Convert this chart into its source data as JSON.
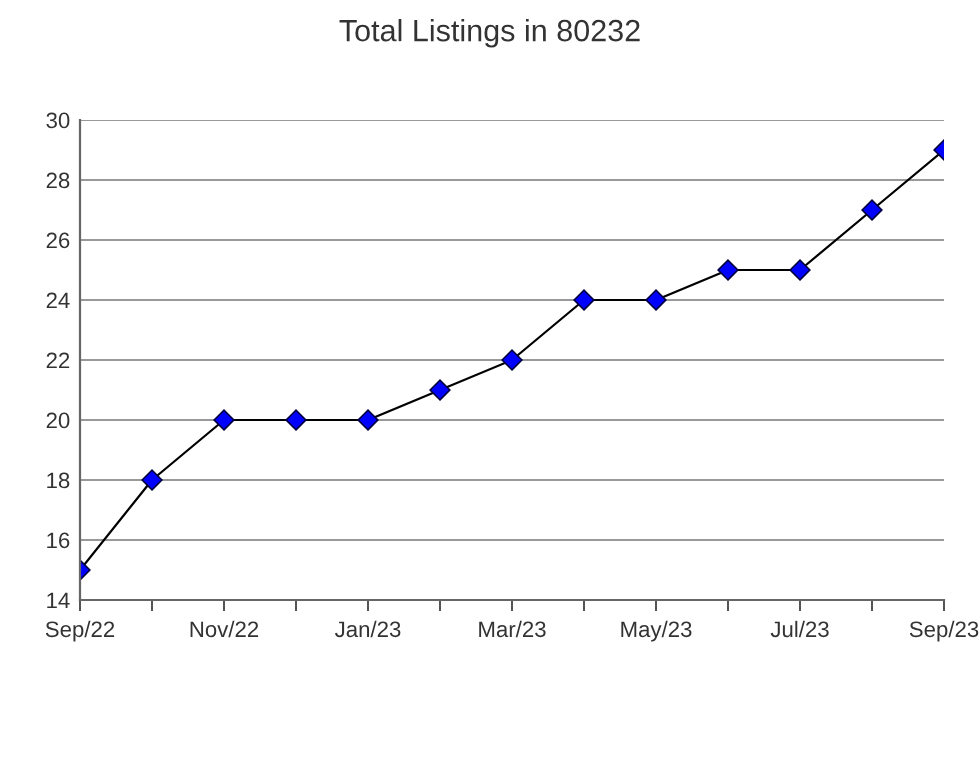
{
  "chart_data": {
    "type": "line",
    "title": "Total Listings in 80232",
    "categories": [
      "Sep/22",
      null,
      "Nov/22",
      null,
      "Jan/23",
      null,
      "Mar/23",
      null,
      "May/23",
      null,
      "Jul/23",
      null,
      "Sep/23"
    ],
    "series": [
      {
        "color": "#0000ff",
        "values": [
          15,
          18,
          20,
          20,
          20,
          21,
          22,
          24,
          24,
          25,
          25,
          27,
          29
        ]
      }
    ],
    "ylim": [
      14,
      30
    ],
    "yticks": [
      14,
      16,
      18,
      20,
      22,
      24,
      26,
      28,
      30
    ],
    "grid": "y",
    "marker": "diamond",
    "line_style": "solid"
  }
}
